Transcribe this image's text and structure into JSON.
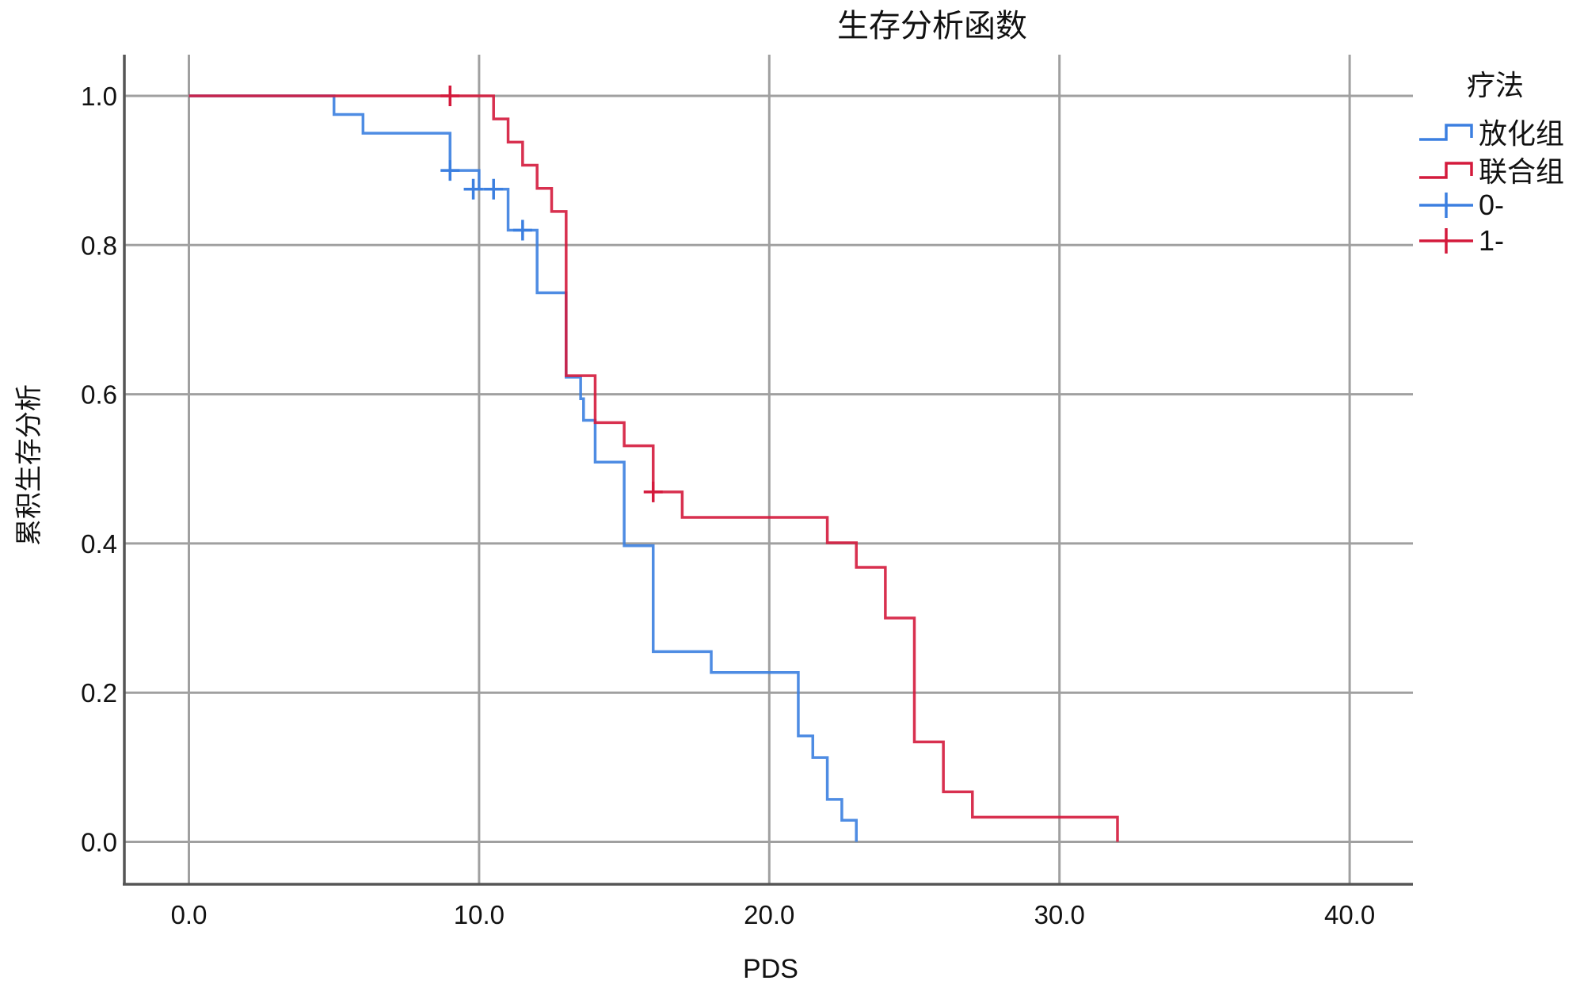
{
  "chart_data": {
    "type": "line",
    "subtype": "kaplan-meier-step",
    "title": "生存分析函数",
    "xlabel": "PDS",
    "ylabel": "累积生存分析",
    "xlim": [
      -2.2,
      42.2
    ],
    "ylim": [
      -0.06,
      1.06
    ],
    "x_ticks": [
      "0.0",
      "10.0",
      "20.0",
      "30.0",
      "40.0"
    ],
    "y_ticks": [
      "0.0",
      "0.2",
      "0.4",
      "0.6",
      "0.8",
      "1.0"
    ],
    "grid": true,
    "legend": {
      "title": "疗法",
      "placement": "right",
      "entries": [
        "放化组",
        "联合组",
        "0-",
        "1-"
      ]
    },
    "series": [
      {
        "name": "放化组",
        "color": "#3b7fe0",
        "steps": [
          [
            0,
            1.0
          ],
          [
            5,
            0.975
          ],
          [
            6,
            0.95
          ],
          [
            9,
            0.9
          ],
          [
            10,
            0.875
          ],
          [
            11,
            0.82
          ],
          [
            12,
            0.736
          ],
          [
            13,
            0.623
          ],
          [
            13.5,
            0.594
          ],
          [
            13.6,
            0.565
          ],
          [
            14,
            0.509
          ],
          [
            15,
            0.397
          ],
          [
            16,
            0.255
          ],
          [
            18,
            0.227
          ],
          [
            21,
            0.142
          ],
          [
            21.5,
            0.113
          ],
          [
            22,
            0.057
          ],
          [
            22.5,
            0.029
          ],
          [
            23,
            0.0
          ]
        ],
        "end": 23,
        "censored": [
          [
            9,
            0.9
          ],
          [
            9.8,
            0.875
          ],
          [
            10.5,
            0.875
          ],
          [
            11.5,
            0.82
          ]
        ]
      },
      {
        "name": "联合组",
        "color": "#d41a3c",
        "steps": [
          [
            0,
            1.0
          ],
          [
            10.5,
            0.969
          ],
          [
            11,
            0.938
          ],
          [
            11.5,
            0.907
          ],
          [
            12,
            0.876
          ],
          [
            12.5,
            0.845
          ],
          [
            13,
            0.625
          ],
          [
            14,
            0.562
          ],
          [
            15,
            0.531
          ],
          [
            16,
            0.469
          ],
          [
            17,
            0.435
          ],
          [
            22,
            0.401
          ],
          [
            23,
            0.368
          ],
          [
            24,
            0.3
          ],
          [
            25,
            0.134
          ],
          [
            26,
            0.067
          ],
          [
            27,
            0.033
          ],
          [
            32,
            0.0
          ]
        ],
        "end": 32,
        "censored": [
          [
            9,
            1.0
          ],
          [
            16,
            0.469
          ]
        ]
      }
    ],
    "censor_legend": [
      {
        "label": "0-",
        "color": "#3b7fe0"
      },
      {
        "label": "1-",
        "color": "#d41a3c"
      }
    ]
  }
}
